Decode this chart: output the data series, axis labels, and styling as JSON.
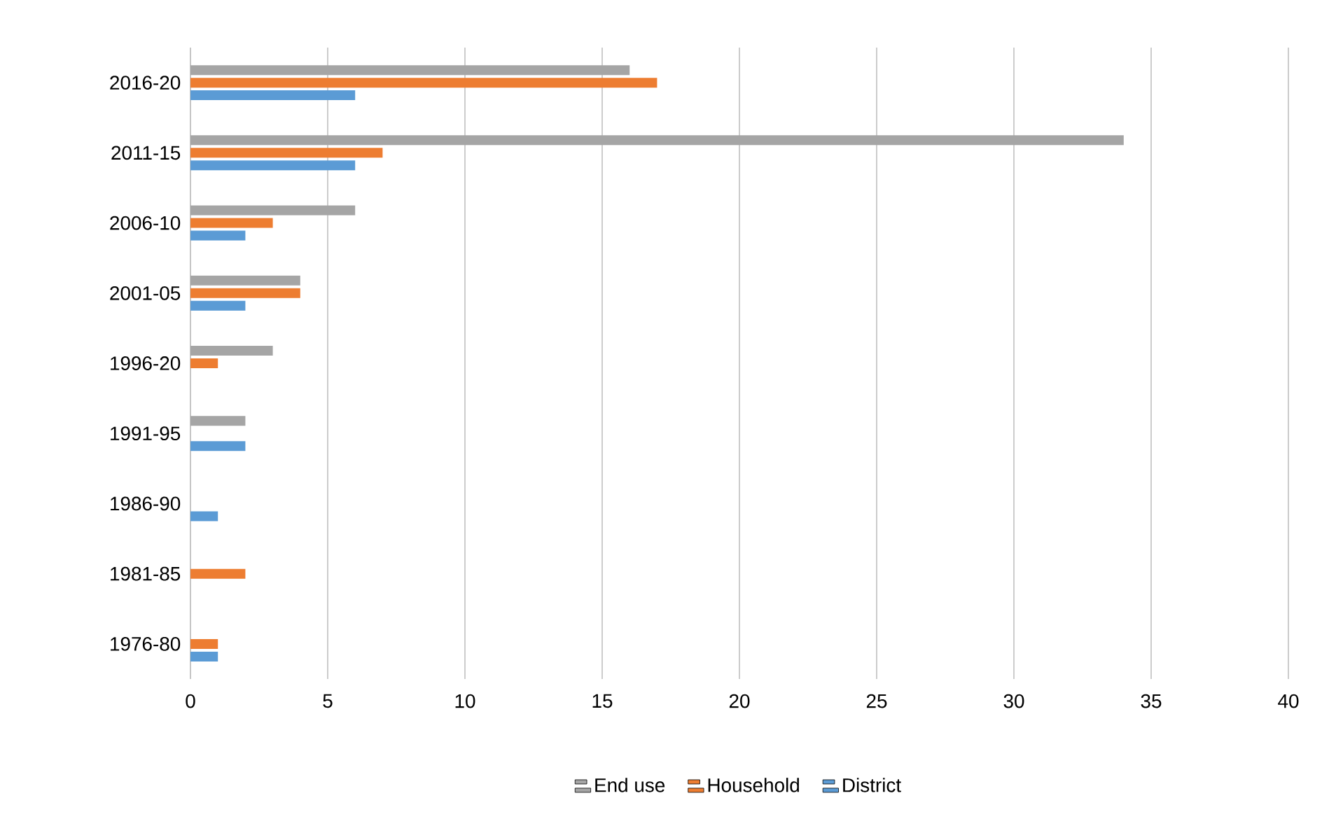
{
  "chart_data": {
    "type": "bar",
    "orientation": "horizontal",
    "categories": [
      "2016-20",
      "2011-15",
      "2006-10",
      "2001-05",
      "1996-20",
      "1991-95",
      "1986-90",
      "1981-85",
      "1976-80"
    ],
    "series": [
      {
        "name": "End use",
        "color": "#a5a5a5",
        "values": [
          16,
          34,
          6,
          4,
          3,
          2,
          0,
          0,
          0
        ]
      },
      {
        "name": "Household",
        "color": "#ed7d31",
        "values": [
          17,
          7,
          3,
          4,
          1,
          0,
          0,
          2,
          1
        ]
      },
      {
        "name": "District",
        "color": "#5b9bd5",
        "values": [
          6,
          6,
          2,
          2,
          0,
          2,
          1,
          0,
          1
        ]
      }
    ],
    "xlim": [
      0,
      40
    ],
    "xticks": [
      0,
      5,
      10,
      15,
      20,
      25,
      30,
      35,
      40
    ],
    "grid": "x",
    "legend": "bottom"
  }
}
